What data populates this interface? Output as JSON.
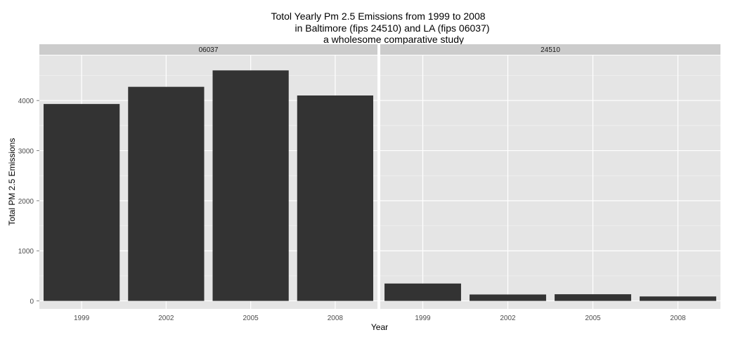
{
  "chart_data": {
    "type": "bar",
    "title_lines": [
      "Totol Yearly Pm 2.5 Emissions from 1999 to 2008",
      "in Baltimore (fips 24510) and LA (fips 06037)",
      "a wholesome comparative study"
    ],
    "xlabel": "Year",
    "ylabel": "Total PM 2.5 Emissions",
    "categories": [
      "1999",
      "2002",
      "2005",
      "2008"
    ],
    "ylim": [
      -160,
      4900
    ],
    "yticks": [
      0,
      1000,
      2000,
      3000,
      4000
    ],
    "grid": true,
    "facets": [
      {
        "name": "06037",
        "values": [
          3931,
          4274,
          4602,
          4101
        ]
      },
      {
        "name": "24510",
        "values": [
          347,
          128,
          133,
          89
        ]
      }
    ],
    "colors": {
      "bar": "#333333",
      "panel": "#e5e5e5",
      "strip": "#cccccc",
      "grid_major": "#ffffff",
      "grid_minor": "#f2f2f2"
    }
  }
}
